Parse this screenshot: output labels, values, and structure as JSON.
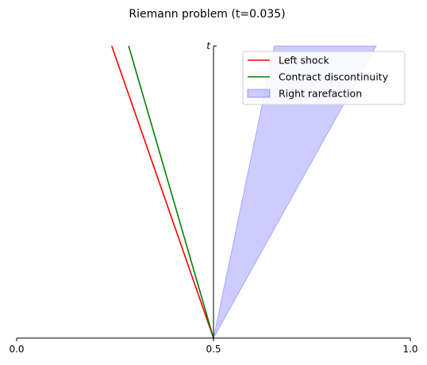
{
  "chart_data": {
    "type": "line",
    "title": "Riemann problem (t=0.035)",
    "xlabel": "",
    "ylabel": "t",
    "xlim": [
      0.0,
      1.0
    ],
    "ylim": [
      0.0,
      0.035
    ],
    "x_ticks": [
      "0.0",
      "0.5",
      "1.0"
    ],
    "grid": false,
    "legend_position": "top-right",
    "series": [
      {
        "name": "Left shock",
        "type": "line",
        "color": "#ff0000",
        "points": [
          [
            0.5,
            0.0
          ],
          [
            0.2415,
            0.035
          ]
        ]
      },
      {
        "name": "Contract discontinuity",
        "type": "line",
        "color": "#008000",
        "points": [
          [
            0.5,
            0.0
          ],
          [
            0.2845,
            0.035
          ]
        ]
      },
      {
        "name": "Right rarefaction",
        "type": "area",
        "color": "#0000ff",
        "alpha": 0.2,
        "polygon": [
          [
            0.5,
            0.0
          ],
          [
            0.6545,
            0.035
          ],
          [
            0.9135,
            0.035
          ]
        ]
      }
    ]
  }
}
